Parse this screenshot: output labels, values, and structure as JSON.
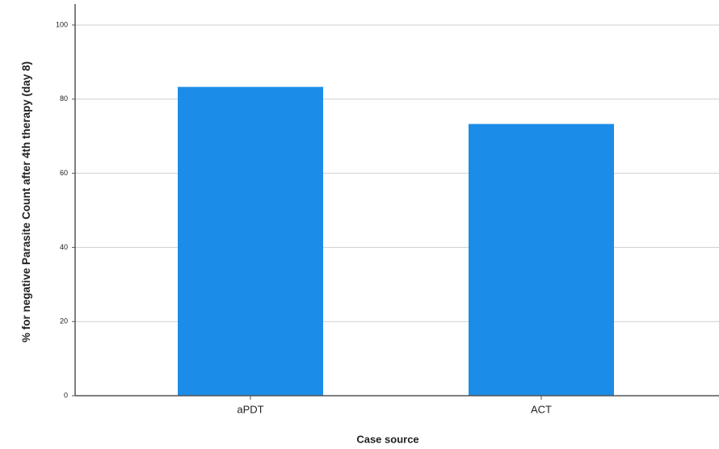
{
  "chart_data": {
    "type": "bar",
    "x_label": "Case source",
    "y_label": "% for negative Parasite Count  after 4th therapy (day 8)",
    "categories": [
      "aPDT",
      "ACT"
    ],
    "values": [
      83.3,
      73.3
    ],
    "color": "#1b8de8",
    "ylim": [
      0,
      105
    ],
    "yticks": [
      0,
      20,
      40,
      60,
      80,
      100
    ],
    "grid": true
  }
}
